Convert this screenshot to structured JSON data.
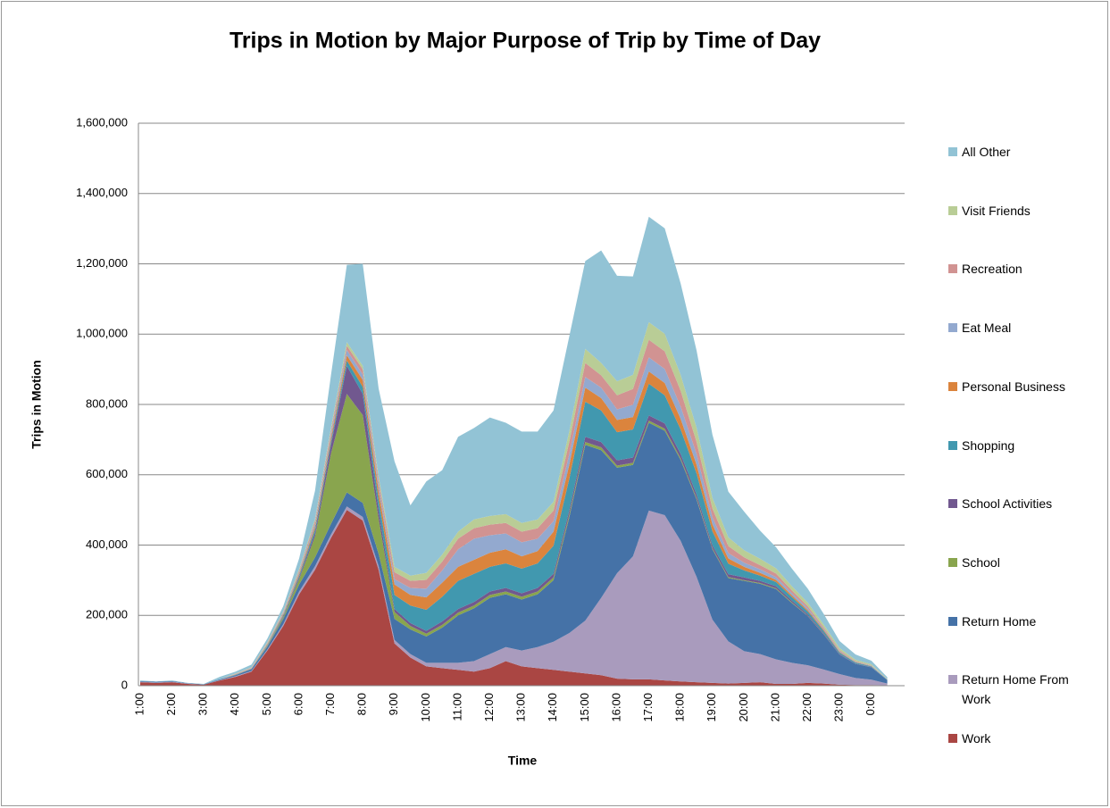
{
  "chart_data": {
    "type": "stacked_area",
    "title": "Trips in Motion by Major Purpose of Trip by Time of Day",
    "x_label": "Time",
    "y_label": "Trips in Motion",
    "categories": [
      "1:00",
      null,
      "2:00",
      null,
      "3:00",
      null,
      "4:00",
      null,
      "5:00",
      null,
      "6:00",
      null,
      "7:00",
      null,
      "8:00",
      null,
      "9:00",
      null,
      "10:00",
      null,
      "11:00",
      null,
      "12:00",
      null,
      "13:00",
      null,
      "14:00",
      null,
      "15:00",
      null,
      "16:00",
      null,
      "17:00",
      null,
      "18:00",
      null,
      "19:00",
      null,
      "20:00",
      null,
      "21:00",
      null,
      "22:00",
      null,
      "23:00",
      null,
      "0:00",
      null
    ],
    "ylim": [
      0,
      1600000
    ],
    "yticks": [
      0,
      {
        "value": 200000,
        "label": "200,000"
      },
      {
        "value": 400000,
        "label": "400,000"
      },
      {
        "value": 600000,
        "label": "600,000"
      },
      {
        "value": 800000,
        "label": "800,000"
      },
      {
        "value": 1000000,
        "label": "1,000,000"
      },
      {
        "value": 1200000,
        "label": "1,200,000"
      },
      {
        "value": 1400000,
        "label": "1,400,000"
      },
      {
        "value": 1600000,
        "label": "1,600,000"
      }
    ],
    "grid": true,
    "legend": "right",
    "series": [
      {
        "name": "Work",
        "color": "#aa4643",
        "values": [
          10000,
          8000,
          10000,
          5000,
          3000,
          15000,
          25000,
          40000,
          100000,
          170000,
          260000,
          330000,
          420000,
          500000,
          470000,
          330000,
          120000,
          80000,
          55000,
          50000,
          45000,
          40000,
          50000,
          70000,
          55000,
          50000,
          45000,
          40000,
          35000,
          30000,
          20000,
          18000,
          18000,
          15000,
          12000,
          10000,
          8000,
          6000,
          8000,
          10000,
          5000,
          5000,
          8000,
          6000,
          3000,
          2000,
          2000,
          1000
        ]
      },
      {
        "name": "Return Home From Work",
        "color": "#a99bbd",
        "values": [
          1000,
          1000,
          1000,
          1000,
          0,
          1000,
          2000,
          2000,
          3000,
          5000,
          8000,
          10000,
          10000,
          10000,
          10000,
          10000,
          10000,
          10000,
          10000,
          15000,
          20000,
          30000,
          40000,
          40000,
          45000,
          60000,
          80000,
          110000,
          150000,
          220000,
          300000,
          350000,
          480000,
          470000,
          400000,
          300000,
          180000,
          120000,
          90000,
          80000,
          70000,
          60000,
          50000,
          40000,
          30000,
          20000,
          15000,
          5000
        ]
      },
      {
        "name": "Return Home",
        "color": "#4572a7",
        "values": [
          2000,
          2000,
          2000,
          1000,
          1000,
          2000,
          3000,
          5000,
          8000,
          15000,
          20000,
          25000,
          30000,
          40000,
          40000,
          35000,
          60000,
          70000,
          75000,
          100000,
          135000,
          150000,
          160000,
          150000,
          145000,
          150000,
          175000,
          330000,
          500000,
          420000,
          300000,
          260000,
          250000,
          240000,
          230000,
          220000,
          200000,
          180000,
          200000,
          200000,
          200000,
          170000,
          140000,
          100000,
          55000,
          40000,
          35000,
          10000
        ]
      },
      {
        "name": "School",
        "color": "#89a54e",
        "values": [
          0,
          0,
          0,
          0,
          0,
          0,
          0,
          0,
          2000,
          5000,
          15000,
          60000,
          200000,
          280000,
          250000,
          100000,
          20000,
          10000,
          8000,
          8000,
          8000,
          8000,
          8000,
          8000,
          8000,
          8000,
          8000,
          8000,
          8000,
          8000,
          6000,
          6000,
          6000,
          6000,
          5000,
          4000,
          3000,
          3000,
          2000,
          2000,
          2000,
          2000,
          1000,
          1000,
          0,
          0,
          0,
          0
        ]
      },
      {
        "name": "School Activities",
        "color": "#71588f",
        "values": [
          0,
          0,
          0,
          0,
          0,
          0,
          0,
          0,
          1000,
          2000,
          5000,
          10000,
          25000,
          80000,
          60000,
          25000,
          8000,
          8000,
          8000,
          10000,
          10000,
          10000,
          10000,
          10000,
          10000,
          10000,
          10000,
          12000,
          15000,
          15000,
          15000,
          15000,
          15000,
          15000,
          12000,
          10000,
          8000,
          8000,
          8000,
          6000,
          6000,
          5000,
          4000,
          3000,
          2000,
          1000,
          1000,
          0
        ]
      },
      {
        "name": "Shopping",
        "color": "#4198af",
        "values": [
          0,
          0,
          0,
          0,
          0,
          0,
          1000,
          1000,
          2000,
          3000,
          5000,
          10000,
          10000,
          15000,
          20000,
          30000,
          40000,
          50000,
          60000,
          70000,
          80000,
          80000,
          70000,
          70000,
          70000,
          70000,
          80000,
          90000,
          100000,
          90000,
          80000,
          80000,
          90000,
          80000,
          70000,
          60000,
          40000,
          30000,
          20000,
          15000,
          12000,
          10000,
          8000,
          6000,
          4000,
          3000,
          2000,
          1000
        ]
      },
      {
        "name": "Personal Business",
        "color": "#db843d",
        "values": [
          0,
          0,
          0,
          0,
          0,
          0,
          1000,
          1000,
          2000,
          3000,
          5000,
          8000,
          10000,
          15000,
          20000,
          25000,
          30000,
          30000,
          35000,
          40000,
          40000,
          40000,
          40000,
          40000,
          35000,
          35000,
          40000,
          40000,
          40000,
          35000,
          35000,
          35000,
          35000,
          35000,
          30000,
          25000,
          20000,
          15000,
          10000,
          8000,
          6000,
          5000,
          4000,
          3000,
          2000,
          1000,
          1000,
          0
        ]
      },
      {
        "name": "Eat Meal",
        "color": "#93a9cf",
        "values": [
          0,
          0,
          0,
          0,
          0,
          0,
          1000,
          1000,
          2000,
          3000,
          5000,
          8000,
          10000,
          15000,
          15000,
          15000,
          15000,
          20000,
          25000,
          35000,
          50000,
          60000,
          50000,
          45000,
          40000,
          35000,
          30000,
          30000,
          30000,
          30000,
          30000,
          35000,
          40000,
          40000,
          35000,
          30000,
          20000,
          15000,
          12000,
          10000,
          8000,
          6000,
          5000,
          3000,
          2000,
          1000,
          1000,
          0
        ]
      },
      {
        "name": "Recreation",
        "color": "#d19392",
        "values": [
          0,
          0,
          0,
          0,
          0,
          0,
          1000,
          1000,
          2000,
          3000,
          5000,
          8000,
          10000,
          12000,
          15000,
          15000,
          20000,
          20000,
          25000,
          25000,
          30000,
          30000,
          30000,
          30000,
          30000,
          30000,
          30000,
          35000,
          40000,
          35000,
          40000,
          45000,
          50000,
          50000,
          45000,
          35000,
          25000,
          20000,
          15000,
          12000,
          10000,
          8000,
          6000,
          4000,
          3000,
          2000,
          1000,
          1000
        ]
      },
      {
        "name": "Visit Friends",
        "color": "#b9cd96",
        "values": [
          0,
          0,
          0,
          0,
          0,
          0,
          1000,
          1000,
          2000,
          2000,
          4000,
          6000,
          8000,
          10000,
          10000,
          10000,
          15000,
          15000,
          20000,
          20000,
          20000,
          25000,
          25000,
          25000,
          25000,
          25000,
          25000,
          30000,
          40000,
          35000,
          40000,
          40000,
          50000,
          50000,
          45000,
          40000,
          30000,
          25000,
          20000,
          18000,
          15000,
          12000,
          10000,
          8000,
          6000,
          4000,
          3000,
          1000
        ]
      },
      {
        "name": "All Other",
        "color": "#92c3d5",
        "values": [
          2000,
          1000,
          2000,
          1000,
          1000,
          7000,
          5000,
          8000,
          10000,
          15000,
          30000,
          80000,
          150000,
          220000,
          290000,
          250000,
          300000,
          200000,
          260000,
          240000,
          270000,
          260000,
          280000,
          260000,
          260000,
          250000,
          260000,
          270000,
          250000,
          320000,
          300000,
          280000,
          300000,
          300000,
          260000,
          220000,
          180000,
          130000,
          110000,
          80000,
          60000,
          50000,
          40000,
          30000,
          20000,
          15000,
          10000,
          5000
        ]
      }
    ]
  }
}
